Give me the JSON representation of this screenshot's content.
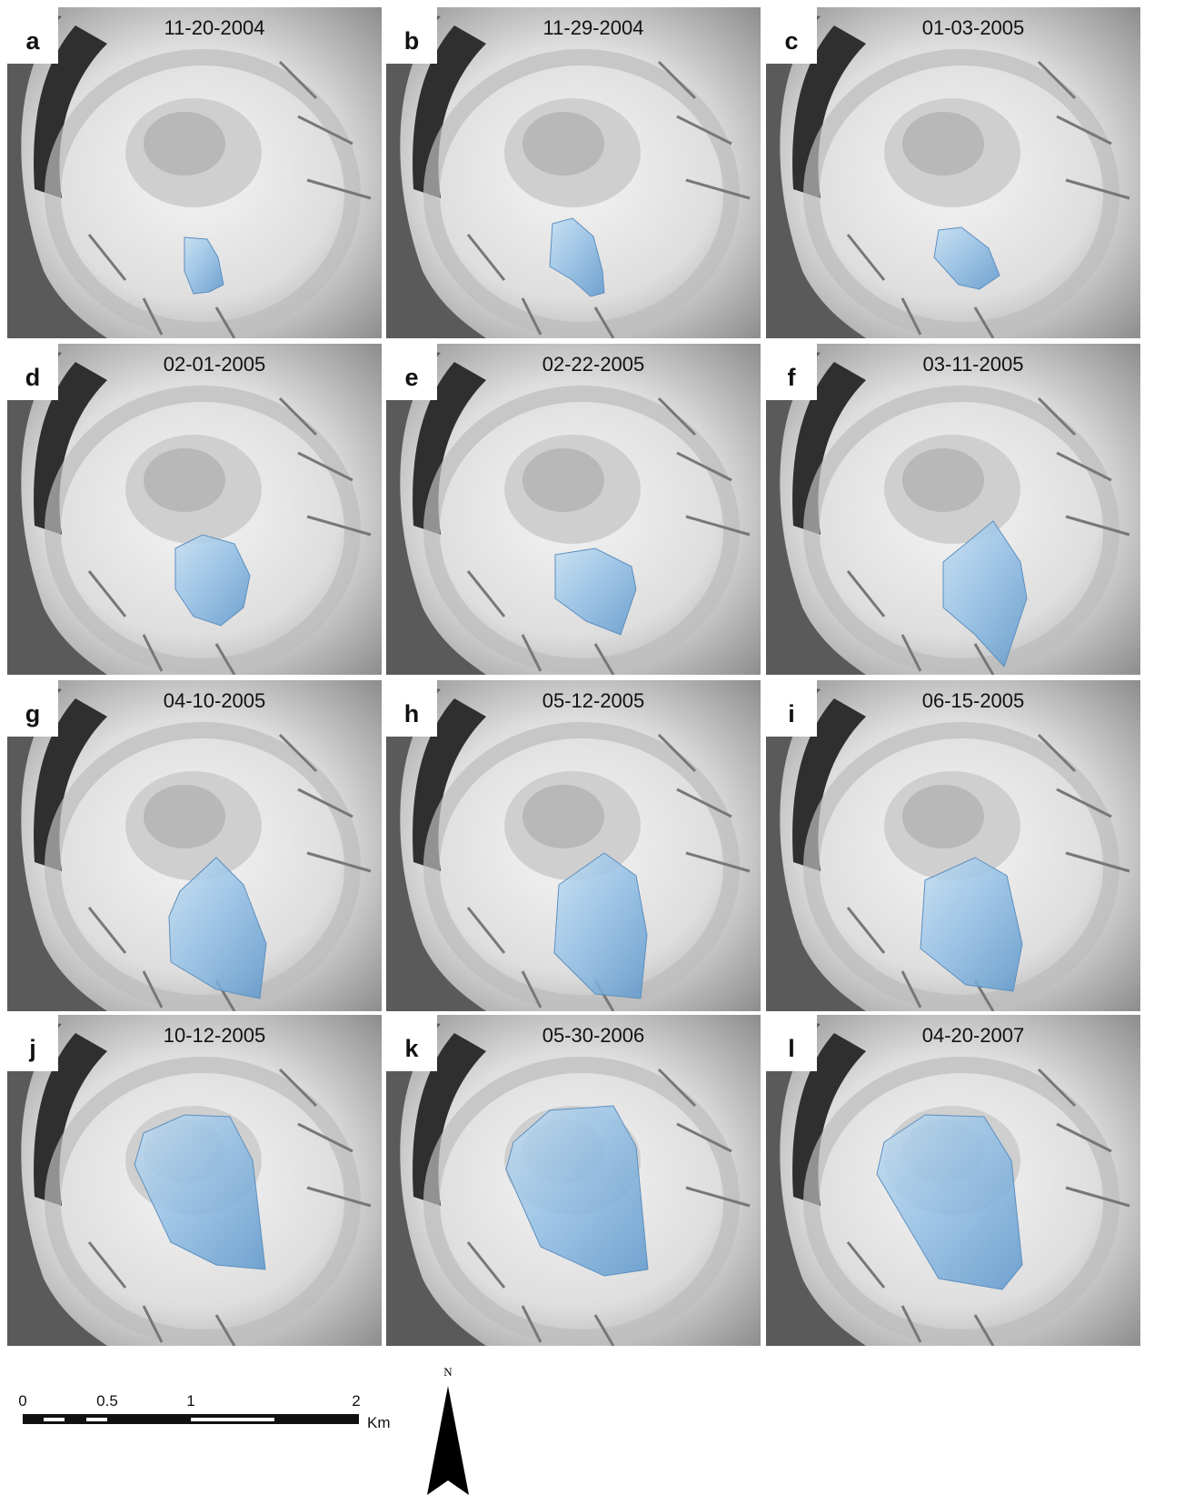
{
  "panels": [
    {
      "letter": "a",
      "date": "11-20-2004"
    },
    {
      "letter": "b",
      "date": "11-29-2004"
    },
    {
      "letter": "c",
      "date": "01-03-2005"
    },
    {
      "letter": "d",
      "date": "02-01-2005"
    },
    {
      "letter": "e",
      "date": "02-22-2005"
    },
    {
      "letter": "f",
      "date": "03-11-2005"
    },
    {
      "letter": "g",
      "date": "04-10-2005"
    },
    {
      "letter": "h",
      "date": "05-12-2005"
    },
    {
      "letter": "i",
      "date": "06-15-2005"
    },
    {
      "letter": "j",
      "date": "10-12-2005"
    },
    {
      "letter": "k",
      "date": "05-30-2006"
    },
    {
      "letter": "l",
      "date": "04-20-2007"
    }
  ],
  "scale_bar": {
    "labels": [
      "0",
      "0.5",
      "1",
      "2"
    ],
    "unit": "Km"
  },
  "north_arrow": "N"
}
